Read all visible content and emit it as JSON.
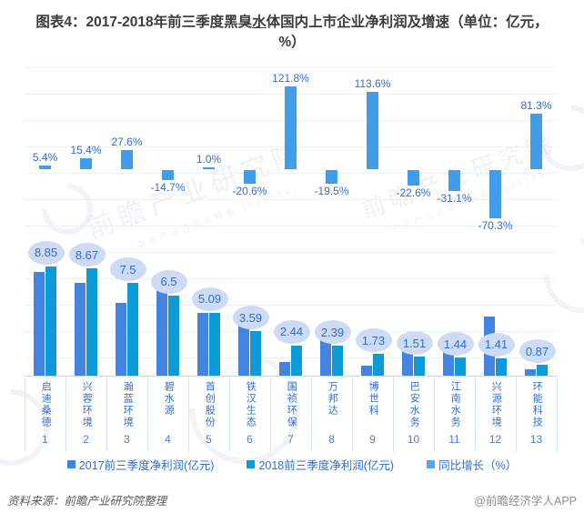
{
  "title": {
    "prefix": "图表4：2017-2018年前三季度黑臭",
    "underlined": "水",
    "suffix": "体国内上市企业净利润及增速（单位：亿元，%）"
  },
  "chart_data": {
    "type": "bar",
    "categories": [
      "启迪桑德",
      "兴蓉环境",
      "瀚蓝环境",
      "碧水源",
      "首创股份",
      "铁汉生态",
      "国祯环保",
      "万邦达",
      "博世科",
      "巴安水务",
      "江南水务",
      "兴源环境",
      "环能科技"
    ],
    "index_labels": [
      "1",
      "2",
      "3",
      "4",
      "5",
      "6",
      "7",
      "8",
      "9",
      "10",
      "11",
      "12",
      "13"
    ],
    "series": [
      {
        "name": "2017前三季度净利润(亿元)",
        "color": "#4384e0",
        "values": [
          8.4,
          7.51,
          5.88,
          7.62,
          5.04,
          4.52,
          1.1,
          2.97,
          0.81,
          1.95,
          2.09,
          4.75,
          0.48
        ],
        "note": "bars unlabeled; values estimated from 2018 values and growth rates"
      },
      {
        "name": "2018前三季度净利润(亿元)",
        "color": "#0d9bd7",
        "values": [
          8.85,
          8.67,
          7.5,
          6.5,
          5.09,
          3.59,
          2.44,
          2.39,
          1.73,
          1.51,
          1.44,
          1.41,
          0.87
        ],
        "labels": [
          "8.85",
          "8.67",
          "7.5",
          "6.5",
          "5.09",
          "3.59",
          "2.44",
          "2.39",
          "1.73",
          "1.51",
          "1.44",
          "1.41",
          "0.87"
        ]
      },
      {
        "name": "同比增长（%）",
        "color": "#419ce9",
        "values": [
          5.4,
          15.4,
          27.6,
          -14.7,
          1.0,
          -20.6,
          121.8,
          -19.5,
          113.6,
          -22.6,
          -31.1,
          -70.3,
          81.3
        ],
        "labels": [
          "5.4%",
          "15.4%",
          "27.6%",
          "-14.7%",
          "1.0%",
          "-20.6%",
          "121.8%",
          "-19.5%",
          "113.6%",
          "-22.6%",
          "-31.1%",
          "-70.3%",
          "81.3%"
        ]
      }
    ],
    "ylabel": "",
    "xlabel": "",
    "grid": true,
    "legend_position": "bottom",
    "growth_axis_range_pct": [
      -80,
      130
    ],
    "profit_axis_range_yi": [
      0,
      10
    ]
  },
  "legend": {
    "items": [
      {
        "label": "2017前三季度净利润(亿元)",
        "color": "#4384e0"
      },
      {
        "label": "2018前三季度净利润(亿元)",
        "color": "#0d9bd7"
      },
      {
        "label": "同比增长（%）",
        "color": "#5aa4ea"
      }
    ]
  },
  "footer": {
    "source": "资料来源：前瞻产业研究院整理",
    "credit": "@前瞻经济学人APP"
  },
  "watermark": {
    "text": "前瞻产业研究院",
    "subtext": "中国产业咨询领导者（839599）"
  },
  "colors": {
    "bar_2017": "#4384e0",
    "bar_2018": "#0d9bd7",
    "bar_growth": "#419ce9",
    "label_blue": "#2f6ed2",
    "bubble_fill": "#cddcf4",
    "gridline": "#e9f1fa",
    "axis_border": "#c6daf0",
    "title_text": "#3c3c3c"
  }
}
